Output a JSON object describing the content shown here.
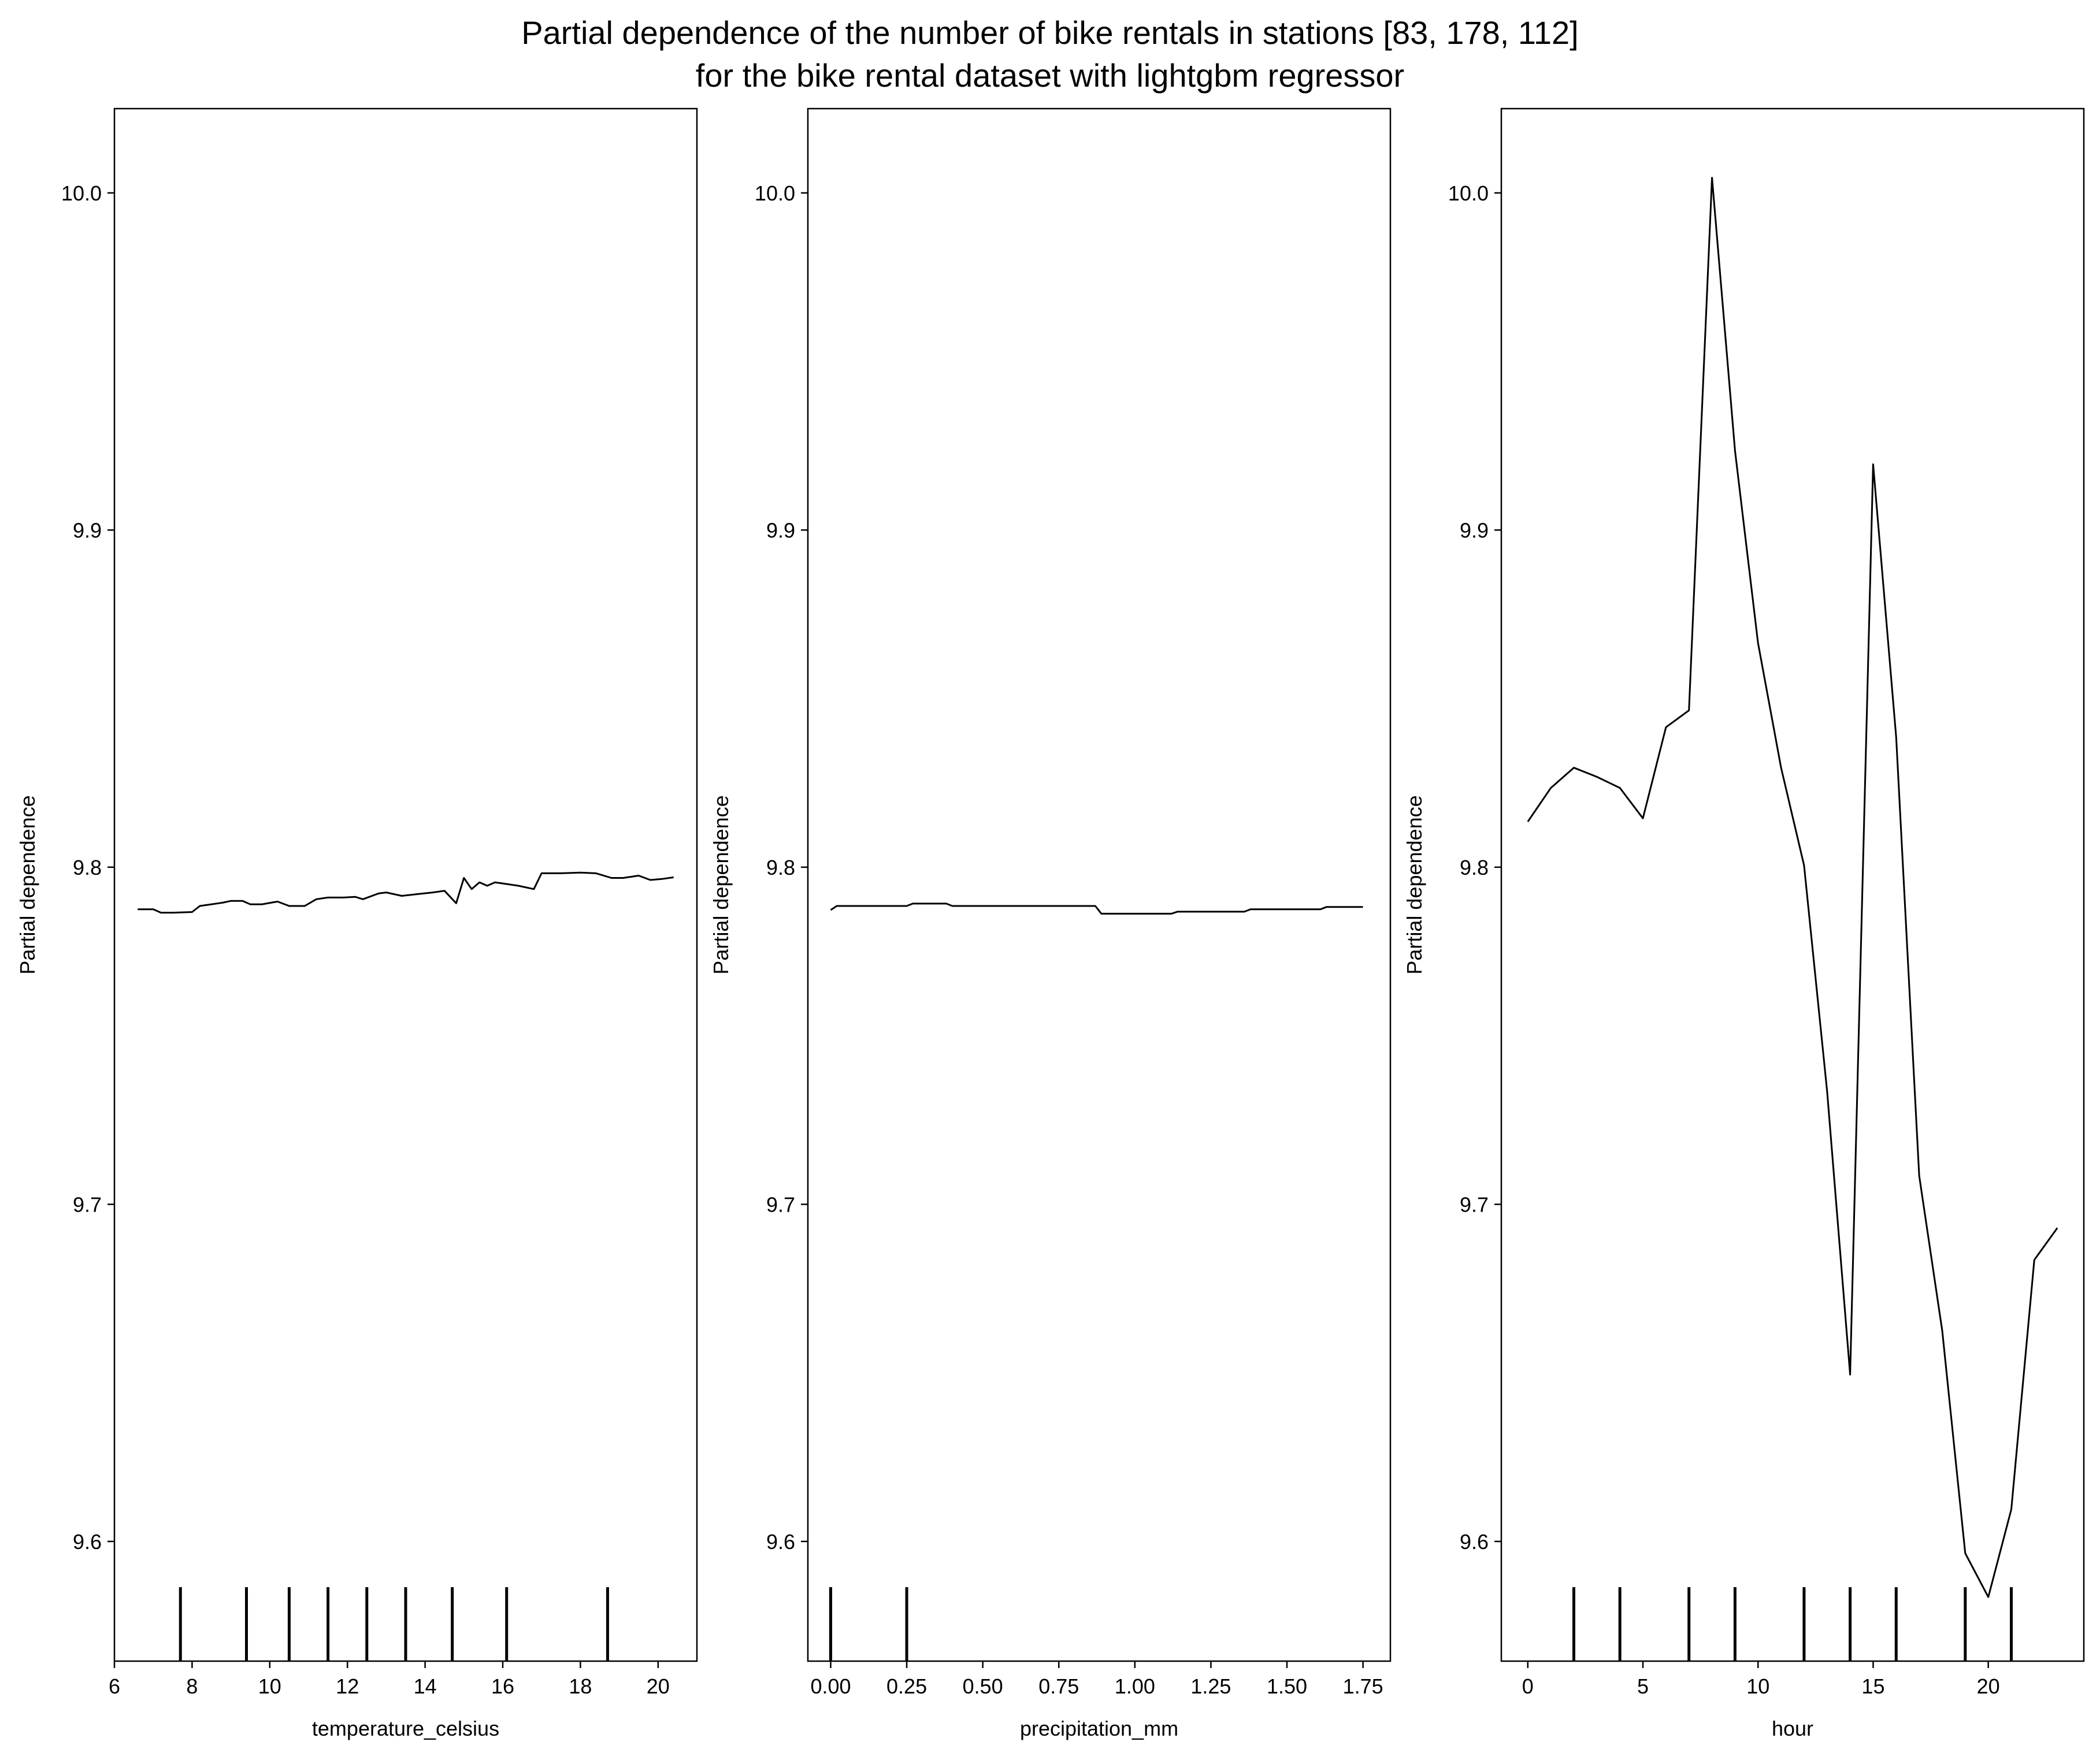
{
  "figure": {
    "title_line1": "Partial dependence of the number of bike rentals in stations [83, 178, 112]",
    "title_line2": "for the bike rental dataset with lightgbm regressor"
  },
  "chart_data": [
    {
      "type": "line",
      "xlabel": "temperature_celsius",
      "ylabel": "Partial dependence",
      "xlim": [
        6.0,
        21.0
      ],
      "ylim": [
        9.5645,
        10.025
      ],
      "xticks": [
        6,
        8,
        10,
        12,
        14,
        16,
        18,
        20
      ],
      "xtick_labels": [
        "6",
        "8",
        "10",
        "12",
        "14",
        "16",
        "18",
        "20"
      ],
      "yticks": [
        9.6,
        9.7,
        9.8,
        9.9,
        10.0
      ],
      "ytick_labels": [
        "9.6",
        "9.7",
        "9.8",
        "9.9",
        "10.0"
      ],
      "deciles": [
        7.7,
        9.4,
        10.5,
        11.5,
        12.5,
        13.5,
        14.7,
        16.1,
        18.7
      ],
      "x": [
        6.6,
        7.0,
        7.2,
        7.5,
        8.0,
        8.2,
        8.5,
        8.8,
        9.0,
        9.3,
        9.5,
        9.8,
        10.2,
        10.5,
        10.9,
        11.2,
        11.5,
        11.9,
        12.2,
        12.4,
        12.8,
        13.0,
        13.4,
        13.8,
        14.2,
        14.5,
        14.8,
        15.0,
        15.2,
        15.4,
        15.6,
        15.8,
        16.1,
        16.4,
        16.8,
        17.0,
        17.5,
        18.0,
        18.4,
        18.8,
        19.1,
        19.5,
        19.8,
        20.1,
        20.4
      ],
      "y": [
        9.7875,
        9.7875,
        9.7865,
        9.7865,
        9.7867,
        9.7885,
        9.789,
        9.7895,
        9.79,
        9.79,
        9.789,
        9.789,
        9.7898,
        9.7885,
        9.7885,
        9.7905,
        9.791,
        9.791,
        9.7912,
        9.7905,
        9.7922,
        9.7925,
        9.7915,
        9.792,
        9.7925,
        9.793,
        9.7893,
        9.7968,
        9.7935,
        9.7955,
        9.7945,
        9.7955,
        9.795,
        9.7945,
        9.7935,
        9.7982,
        9.7982,
        9.7984,
        9.7982,
        9.7968,
        9.7968,
        9.7975,
        9.7962,
        9.7965,
        9.797
      ]
    },
    {
      "type": "line",
      "xlabel": "precipitation_mm",
      "ylabel": "Partial dependence",
      "xlim": [
        -0.075,
        1.84
      ],
      "ylim": [
        9.5645,
        10.025
      ],
      "xticks": [
        0.0,
        0.25,
        0.5,
        0.75,
        1.0,
        1.25,
        1.5,
        1.75
      ],
      "xtick_labels": [
        "0.00",
        "0.25",
        "0.50",
        "0.75",
        "1.00",
        "1.25",
        "1.50",
        "1.75"
      ],
      "yticks": [
        9.6,
        9.7,
        9.8,
        9.9,
        10.0
      ],
      "ytick_labels": [
        "9.6",
        "9.7",
        "9.8",
        "9.9",
        "10.0"
      ],
      "deciles": [
        0.0,
        0.0,
        0.0,
        0.0,
        0.0,
        0.0,
        0.0,
        0.25
      ],
      "x": [
        0.0,
        0.02,
        0.25,
        0.27,
        0.38,
        0.4,
        0.87,
        0.89,
        1.12,
        1.14,
        1.36,
        1.38,
        1.61,
        1.63,
        1.75
      ],
      "y": [
        9.7873,
        9.7885,
        9.7885,
        9.7892,
        9.7892,
        9.7885,
        9.7885,
        9.7862,
        9.7862,
        9.7868,
        9.7868,
        9.7875,
        9.7875,
        9.7882,
        9.7882
      ]
    },
    {
      "type": "line",
      "xlabel": "hour",
      "ylabel": "Partial dependence",
      "xlim": [
        -1.15,
        24.15
      ],
      "ylim": [
        9.5645,
        10.025
      ],
      "xticks": [
        0,
        5,
        10,
        15,
        20
      ],
      "xtick_labels": [
        "0",
        "5",
        "10",
        "15",
        "20"
      ],
      "yticks": [
        9.6,
        9.7,
        9.8,
        9.9,
        10.0
      ],
      "ytick_labels": [
        "9.6",
        "9.7",
        "9.8",
        "9.9",
        "10.0"
      ],
      "deciles": [
        2,
        4,
        7,
        9,
        12,
        14,
        16,
        19,
        21
      ],
      "x": [
        0,
        1,
        2,
        3,
        4,
        5,
        6,
        7,
        8,
        9,
        10,
        11,
        12,
        13,
        14,
        15,
        16,
        17,
        18,
        19,
        20,
        21,
        22,
        23
      ],
      "y": [
        9.8135,
        9.8235,
        9.8295,
        9.8268,
        9.8235,
        9.8145,
        9.8415,
        9.8465,
        10.0045,
        9.9235,
        9.8665,
        9.8295,
        9.8005,
        9.7335,
        9.6495,
        9.9195,
        9.8385,
        9.7085,
        9.6625,
        9.5965,
        9.5835,
        9.6095,
        9.6835,
        9.693
      ]
    }
  ]
}
